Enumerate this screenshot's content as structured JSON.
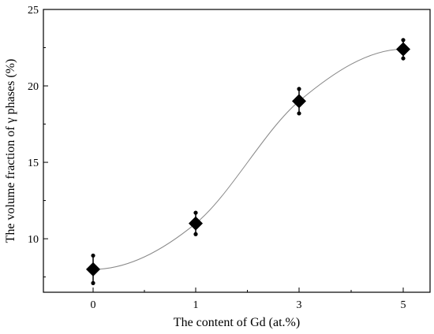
{
  "chart_data": {
    "type": "scatter",
    "xlabel": "The content of Gd (at.%)",
    "ylabel": "The volume fraction of γ phases (%)",
    "x_categories": [
      "0",
      "1",
      "3",
      "5"
    ],
    "ylim": [
      6.5,
      25
    ],
    "y_ticks": [
      10,
      15,
      20,
      25
    ],
    "grid": false,
    "series": [
      {
        "points": [
          {
            "x": "0",
            "y": 8.0,
            "err_low": 7.1,
            "err_high": 8.9
          },
          {
            "x": "1",
            "y": 11.0,
            "err_low": 10.3,
            "err_high": 11.7
          },
          {
            "x": "3",
            "y": 19.0,
            "err_low": 18.2,
            "err_high": 19.8
          },
          {
            "x": "5",
            "y": 22.4,
            "err_low": 21.8,
            "err_high": 23.0
          }
        ]
      }
    ],
    "fit_curve": "smooth sigmoid through points",
    "colors": {
      "marker": "#000000",
      "curve": "#888888",
      "axis": "#000000"
    }
  }
}
